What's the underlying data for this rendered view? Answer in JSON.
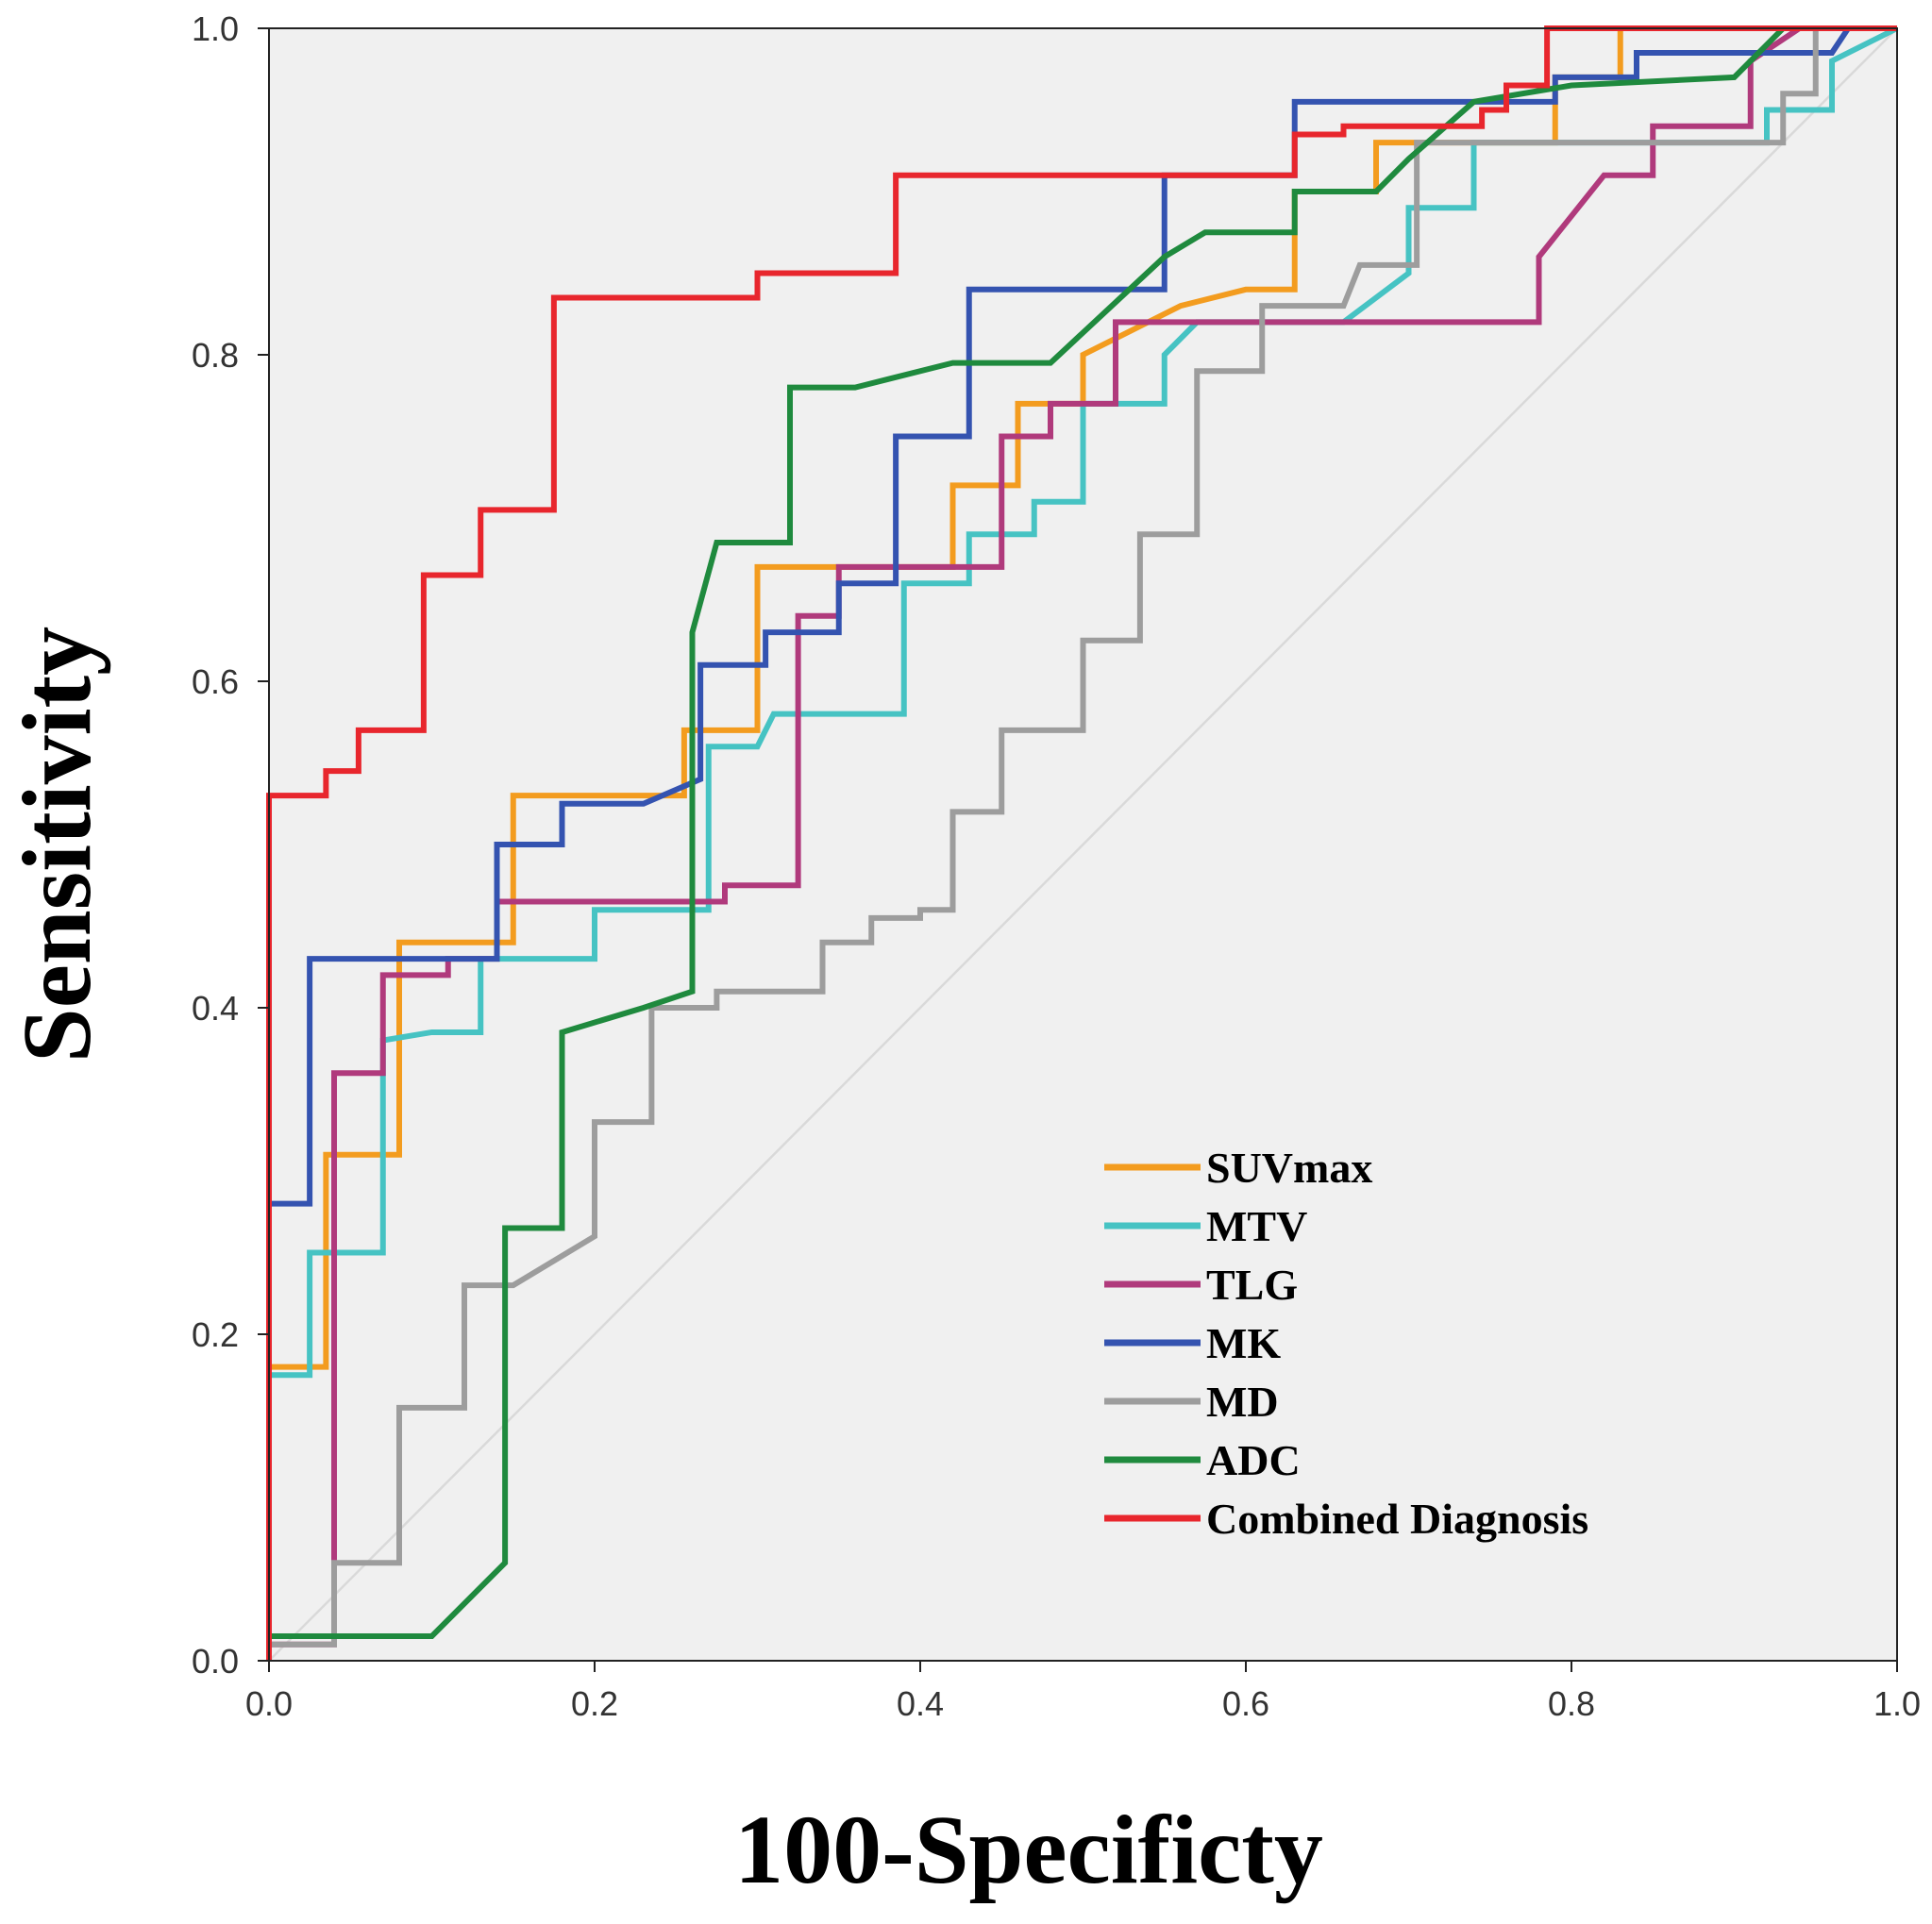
{
  "chart_data": {
    "type": "line",
    "xlabel": "100-Specificty",
    "ylabel": "Sensitivity",
    "xlim": [
      0,
      1
    ],
    "ylim": [
      0,
      1
    ],
    "x_ticks": [
      "0.0",
      "0.2",
      "0.4",
      "0.6",
      "0.8",
      "1.0"
    ],
    "y_ticks": [
      "0.0",
      "0.2",
      "0.4",
      "0.6",
      "0.8",
      "1.0"
    ],
    "grid": false,
    "legend_position": "bottom-right",
    "reference_line": {
      "name": "reference",
      "color": "#d9d9d9",
      "points": [
        [
          0,
          0
        ],
        [
          1,
          1
        ]
      ]
    },
    "series": [
      {
        "name": "SUVmax",
        "color": "#f39c1f",
        "points": [
          [
            0,
            0
          ],
          [
            0,
            0.18
          ],
          [
            0.035,
            0.18
          ],
          [
            0.035,
            0.31
          ],
          [
            0.08,
            0.31
          ],
          [
            0.08,
            0.44
          ],
          [
            0.15,
            0.44
          ],
          [
            0.15,
            0.53
          ],
          [
            0.255,
            0.53
          ],
          [
            0.255,
            0.57
          ],
          [
            0.3,
            0.57
          ],
          [
            0.3,
            0.67
          ],
          [
            0.38,
            0.67
          ],
          [
            0.38,
            0.67
          ],
          [
            0.42,
            0.67
          ],
          [
            0.42,
            0.72
          ],
          [
            0.46,
            0.72
          ],
          [
            0.46,
            0.77
          ],
          [
            0.5,
            0.77
          ],
          [
            0.5,
            0.8
          ],
          [
            0.56,
            0.83
          ],
          [
            0.6,
            0.84
          ],
          [
            0.63,
            0.84
          ],
          [
            0.63,
            0.9
          ],
          [
            0.68,
            0.9
          ],
          [
            0.68,
            0.93
          ],
          [
            0.79,
            0.93
          ],
          [
            0.79,
            0.97
          ],
          [
            0.83,
            0.97
          ],
          [
            0.83,
            1
          ],
          [
            1,
            1
          ]
        ]
      },
      {
        "name": "MTV",
        "color": "#46c3c3",
        "points": [
          [
            0,
            0
          ],
          [
            0,
            0.175
          ],
          [
            0.025,
            0.175
          ],
          [
            0.025,
            0.25
          ],
          [
            0.07,
            0.25
          ],
          [
            0.07,
            0.38
          ],
          [
            0.1,
            0.385
          ],
          [
            0.13,
            0.385
          ],
          [
            0.13,
            0.43
          ],
          [
            0.2,
            0.43
          ],
          [
            0.2,
            0.46
          ],
          [
            0.27,
            0.46
          ],
          [
            0.27,
            0.56
          ],
          [
            0.3,
            0.56
          ],
          [
            0.31,
            0.58
          ],
          [
            0.39,
            0.58
          ],
          [
            0.39,
            0.66
          ],
          [
            0.43,
            0.66
          ],
          [
            0.43,
            0.69
          ],
          [
            0.47,
            0.69
          ],
          [
            0.47,
            0.71
          ],
          [
            0.5,
            0.71
          ],
          [
            0.5,
            0.77
          ],
          [
            0.55,
            0.77
          ],
          [
            0.55,
            0.8
          ],
          [
            0.57,
            0.82
          ],
          [
            0.66,
            0.82
          ],
          [
            0.7,
            0.85
          ],
          [
            0.7,
            0.89
          ],
          [
            0.74,
            0.89
          ],
          [
            0.74,
            0.93
          ],
          [
            0.92,
            0.93
          ],
          [
            0.92,
            0.95
          ],
          [
            0.96,
            0.95
          ],
          [
            0.96,
            0.98
          ],
          [
            1,
            1
          ]
        ]
      },
      {
        "name": "TLG",
        "color": "#b03a7c",
        "points": [
          [
            0,
            0
          ],
          [
            0,
            0.01
          ],
          [
            0.04,
            0.01
          ],
          [
            0.04,
            0.36
          ],
          [
            0.07,
            0.36
          ],
          [
            0.07,
            0.42
          ],
          [
            0.11,
            0.42
          ],
          [
            0.11,
            0.43
          ],
          [
            0.14,
            0.43
          ],
          [
            0.14,
            0.465
          ],
          [
            0.28,
            0.465
          ],
          [
            0.28,
            0.475
          ],
          [
            0.325,
            0.475
          ],
          [
            0.325,
            0.64
          ],
          [
            0.35,
            0.64
          ],
          [
            0.35,
            0.67
          ],
          [
            0.45,
            0.67
          ],
          [
            0.45,
            0.75
          ],
          [
            0.48,
            0.75
          ],
          [
            0.48,
            0.77
          ],
          [
            0.52,
            0.77
          ],
          [
            0.52,
            0.82
          ],
          [
            0.78,
            0.82
          ],
          [
            0.78,
            0.86
          ],
          [
            0.82,
            0.91
          ],
          [
            0.85,
            0.91
          ],
          [
            0.85,
            0.94
          ],
          [
            0.91,
            0.94
          ],
          [
            0.91,
            0.98
          ],
          [
            0.94,
            1
          ],
          [
            1,
            1
          ]
        ]
      },
      {
        "name": "MK",
        "color": "#3453b0",
        "points": [
          [
            0,
            0
          ],
          [
            0,
            0.28
          ],
          [
            0.025,
            0.28
          ],
          [
            0.025,
            0.43
          ],
          [
            0.14,
            0.43
          ],
          [
            0.14,
            0.5
          ],
          [
            0.18,
            0.5
          ],
          [
            0.18,
            0.525
          ],
          [
            0.23,
            0.525
          ],
          [
            0.265,
            0.54
          ],
          [
            0.265,
            0.61
          ],
          [
            0.305,
            0.61
          ],
          [
            0.305,
            0.63
          ],
          [
            0.35,
            0.63
          ],
          [
            0.35,
            0.66
          ],
          [
            0.385,
            0.66
          ],
          [
            0.385,
            0.75
          ],
          [
            0.43,
            0.75
          ],
          [
            0.43,
            0.84
          ],
          [
            0.55,
            0.84
          ],
          [
            0.55,
            0.91
          ],
          [
            0.63,
            0.91
          ],
          [
            0.63,
            0.955
          ],
          [
            0.71,
            0.955
          ],
          [
            0.71,
            0.955
          ],
          [
            0.79,
            0.955
          ],
          [
            0.79,
            0.97
          ],
          [
            0.84,
            0.97
          ],
          [
            0.84,
            0.985
          ],
          [
            0.96,
            0.985
          ],
          [
            0.97,
            1
          ],
          [
            1,
            1
          ]
        ]
      },
      {
        "name": "MD",
        "color": "#9d9d9d",
        "points": [
          [
            0,
            0
          ],
          [
            0,
            0.01
          ],
          [
            0.04,
            0.01
          ],
          [
            0.04,
            0.06
          ],
          [
            0.08,
            0.06
          ],
          [
            0.08,
            0.155
          ],
          [
            0.12,
            0.155
          ],
          [
            0.12,
            0.23
          ],
          [
            0.15,
            0.23
          ],
          [
            0.2,
            0.26
          ],
          [
            0.2,
            0.33
          ],
          [
            0.235,
            0.33
          ],
          [
            0.235,
            0.4
          ],
          [
            0.275,
            0.4
          ],
          [
            0.275,
            0.41
          ],
          [
            0.34,
            0.41
          ],
          [
            0.34,
            0.44
          ],
          [
            0.37,
            0.44
          ],
          [
            0.37,
            0.455
          ],
          [
            0.4,
            0.455
          ],
          [
            0.4,
            0.46
          ],
          [
            0.42,
            0.46
          ],
          [
            0.42,
            0.52
          ],
          [
            0.45,
            0.52
          ],
          [
            0.45,
            0.57
          ],
          [
            0.5,
            0.57
          ],
          [
            0.5,
            0.625
          ],
          [
            0.535,
            0.625
          ],
          [
            0.535,
            0.69
          ],
          [
            0.57,
            0.69
          ],
          [
            0.57,
            0.79
          ],
          [
            0.61,
            0.79
          ],
          [
            0.61,
            0.83
          ],
          [
            0.66,
            0.83
          ],
          [
            0.67,
            0.855
          ],
          [
            0.705,
            0.855
          ],
          [
            0.705,
            0.93
          ],
          [
            0.93,
            0.93
          ],
          [
            0.93,
            0.96
          ],
          [
            0.95,
            0.96
          ],
          [
            0.95,
            1
          ],
          [
            1,
            1
          ]
        ]
      },
      {
        "name": "ADC",
        "color": "#1f8a3e",
        "points": [
          [
            0,
            0
          ],
          [
            0,
            0.015
          ],
          [
            0.1,
            0.015
          ],
          [
            0.145,
            0.06
          ],
          [
            0.145,
            0.265
          ],
          [
            0.18,
            0.265
          ],
          [
            0.18,
            0.385
          ],
          [
            0.23,
            0.4
          ],
          [
            0.26,
            0.41
          ],
          [
            0.26,
            0.63
          ],
          [
            0.275,
            0.685
          ],
          [
            0.32,
            0.685
          ],
          [
            0.32,
            0.78
          ],
          [
            0.36,
            0.78
          ],
          [
            0.38,
            0.785
          ],
          [
            0.42,
            0.795
          ],
          [
            0.48,
            0.795
          ],
          [
            0.55,
            0.86
          ],
          [
            0.575,
            0.875
          ],
          [
            0.63,
            0.875
          ],
          [
            0.63,
            0.9
          ],
          [
            0.68,
            0.9
          ],
          [
            0.7,
            0.92
          ],
          [
            0.74,
            0.955
          ],
          [
            0.8,
            0.965
          ],
          [
            0.9,
            0.97
          ],
          [
            0.93,
            1
          ],
          [
            1,
            1
          ]
        ]
      },
      {
        "name": "Combined Diagnosis",
        "color": "#e8262d",
        "points": [
          [
            0,
            0
          ],
          [
            0,
            0.53
          ],
          [
            0.035,
            0.53
          ],
          [
            0.035,
            0.545
          ],
          [
            0.055,
            0.545
          ],
          [
            0.055,
            0.57
          ],
          [
            0.095,
            0.57
          ],
          [
            0.095,
            0.665
          ],
          [
            0.13,
            0.665
          ],
          [
            0.13,
            0.705
          ],
          [
            0.175,
            0.705
          ],
          [
            0.175,
            0.835
          ],
          [
            0.3,
            0.835
          ],
          [
            0.3,
            0.85
          ],
          [
            0.385,
            0.85
          ],
          [
            0.385,
            0.91
          ],
          [
            0.63,
            0.91
          ],
          [
            0.63,
            0.935
          ],
          [
            0.66,
            0.935
          ],
          [
            0.66,
            0.94
          ],
          [
            0.745,
            0.94
          ],
          [
            0.745,
            0.95
          ],
          [
            0.76,
            0.95
          ],
          [
            0.76,
            0.965
          ],
          [
            0.785,
            0.965
          ],
          [
            0.785,
            1
          ],
          [
            1,
            1
          ]
        ]
      }
    ]
  }
}
